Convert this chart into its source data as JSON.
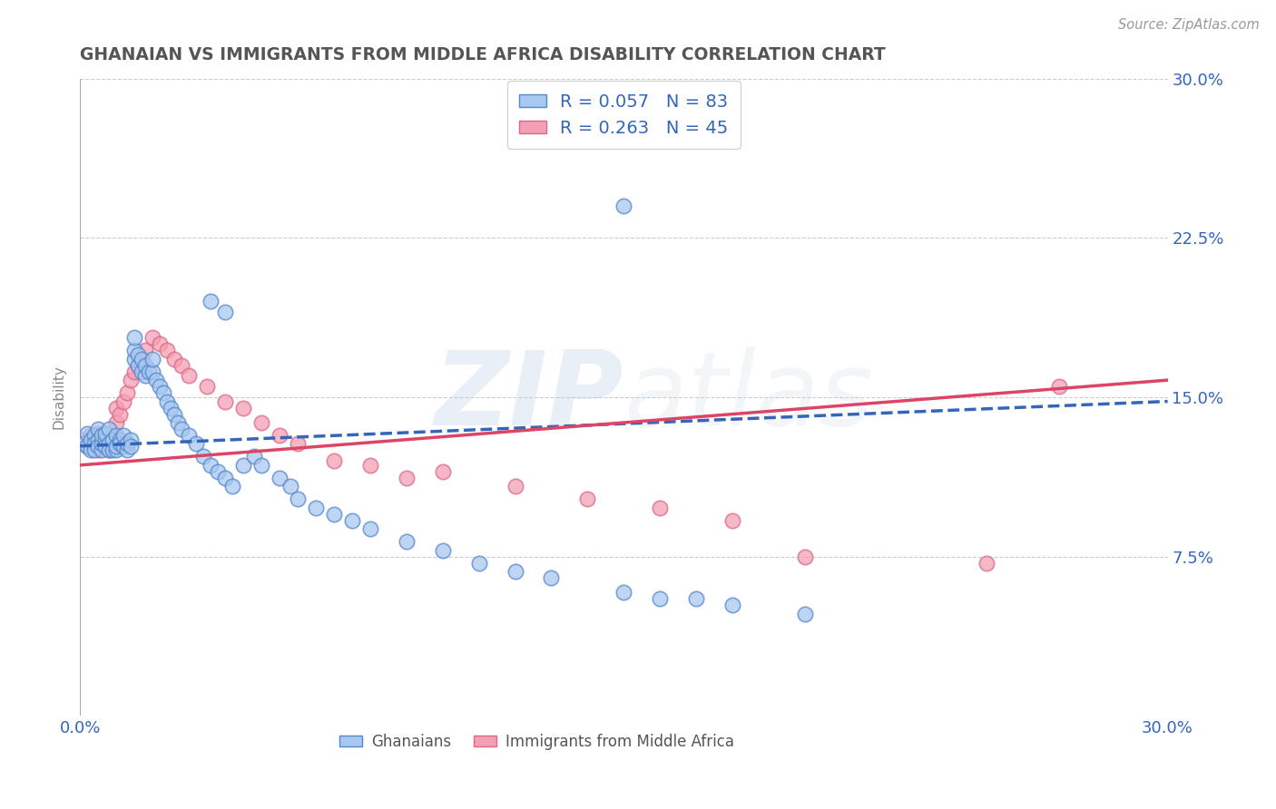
{
  "title": "GHANAIAN VS IMMIGRANTS FROM MIDDLE AFRICA DISABILITY CORRELATION CHART",
  "source": "Source: ZipAtlas.com",
  "ylabel": "Disability",
  "xlim": [
    0.0,
    0.3
  ],
  "ylim": [
    0.0,
    0.3
  ],
  "xticks": [
    0.0,
    0.05,
    0.1,
    0.15,
    0.2,
    0.25,
    0.3
  ],
  "yticks": [
    0.0,
    0.075,
    0.15,
    0.225,
    0.3
  ],
  "ytick_labels_right": [
    "",
    "7.5%",
    "15.0%",
    "22.5%",
    "30.0%"
  ],
  "xtick_labels": [
    "0.0%",
    "",
    "",
    "",
    "",
    "",
    "30.0%"
  ],
  "ghanaian_color": "#a8c8f0",
  "immigrant_color": "#f4a0b4",
  "ghanaian_edge": "#5588cc",
  "immigrant_edge": "#dd6688",
  "line_blue_color": "#3366bb",
  "line_pink_color": "#dd4466",
  "R_ghanaian": 0.057,
  "N_ghanaian": 83,
  "R_immigrant": 0.263,
  "N_immigrant": 45,
  "legend_label_1": "Ghanaians",
  "legend_label_2": "Immigrants from Middle Africa",
  "watermark_zip": "ZIP",
  "watermark_atlas": "atlas",
  "background_color": "#ffffff",
  "grid_color": "#cccccc",
  "title_color": "#555555",
  "axis_label_color": "#3366bb",
  "ghanaian_x": [
    0.001,
    0.002,
    0.002,
    0.003,
    0.003,
    0.004,
    0.004,
    0.004,
    0.005,
    0.005,
    0.005,
    0.006,
    0.006,
    0.006,
    0.007,
    0.007,
    0.007,
    0.008,
    0.008,
    0.008,
    0.009,
    0.009,
    0.01,
    0.01,
    0.01,
    0.011,
    0.011,
    0.012,
    0.012,
    0.013,
    0.013,
    0.014,
    0.014,
    0.015,
    0.015,
    0.015,
    0.016,
    0.016,
    0.017,
    0.017,
    0.018,
    0.018,
    0.019,
    0.02,
    0.02,
    0.021,
    0.022,
    0.023,
    0.024,
    0.025,
    0.026,
    0.027,
    0.028,
    0.03,
    0.032,
    0.034,
    0.036,
    0.038,
    0.04,
    0.042,
    0.045,
    0.048,
    0.05,
    0.055,
    0.058,
    0.06,
    0.065,
    0.07,
    0.075,
    0.08,
    0.09,
    0.1,
    0.11,
    0.12,
    0.13,
    0.15,
    0.16,
    0.17,
    0.18,
    0.2,
    0.036,
    0.04,
    0.15
  ],
  "ghanaian_y": [
    0.128,
    0.133,
    0.127,
    0.125,
    0.13,
    0.132,
    0.128,
    0.125,
    0.13,
    0.127,
    0.135,
    0.125,
    0.128,
    0.132,
    0.13,
    0.127,
    0.133,
    0.128,
    0.125,
    0.135,
    0.125,
    0.13,
    0.125,
    0.132,
    0.127,
    0.13,
    0.128,
    0.127,
    0.132,
    0.125,
    0.128,
    0.13,
    0.127,
    0.168,
    0.172,
    0.178,
    0.165,
    0.17,
    0.162,
    0.168,
    0.16,
    0.165,
    0.162,
    0.162,
    0.168,
    0.158,
    0.155,
    0.152,
    0.148,
    0.145,
    0.142,
    0.138,
    0.135,
    0.132,
    0.128,
    0.122,
    0.118,
    0.115,
    0.112,
    0.108,
    0.118,
    0.122,
    0.118,
    0.112,
    0.108,
    0.102,
    0.098,
    0.095,
    0.092,
    0.088,
    0.082,
    0.078,
    0.072,
    0.068,
    0.065,
    0.058,
    0.055,
    0.055,
    0.052,
    0.048,
    0.195,
    0.19,
    0.24
  ],
  "immigrant_x": [
    0.001,
    0.002,
    0.003,
    0.004,
    0.005,
    0.005,
    0.006,
    0.007,
    0.007,
    0.008,
    0.008,
    0.009,
    0.01,
    0.01,
    0.011,
    0.012,
    0.013,
    0.014,
    0.015,
    0.016,
    0.017,
    0.018,
    0.02,
    0.022,
    0.024,
    0.026,
    0.028,
    0.03,
    0.035,
    0.04,
    0.045,
    0.05,
    0.055,
    0.06,
    0.07,
    0.08,
    0.09,
    0.1,
    0.12,
    0.14,
    0.16,
    0.18,
    0.2,
    0.25,
    0.27
  ],
  "immigrant_y": [
    0.13,
    0.127,
    0.132,
    0.128,
    0.125,
    0.133,
    0.128,
    0.13,
    0.127,
    0.125,
    0.132,
    0.128,
    0.138,
    0.145,
    0.142,
    0.148,
    0.152,
    0.158,
    0.162,
    0.165,
    0.168,
    0.172,
    0.178,
    0.175,
    0.172,
    0.168,
    0.165,
    0.16,
    0.155,
    0.148,
    0.145,
    0.138,
    0.132,
    0.128,
    0.12,
    0.118,
    0.112,
    0.115,
    0.108,
    0.102,
    0.098,
    0.092,
    0.075,
    0.072,
    0.155
  ],
  "line_g_x0": 0.0,
  "line_g_x1": 0.3,
  "line_g_y0": 0.127,
  "line_g_y1": 0.148,
  "line_i_x0": 0.0,
  "line_i_x1": 0.3,
  "line_i_y0": 0.118,
  "line_i_y1": 0.158
}
